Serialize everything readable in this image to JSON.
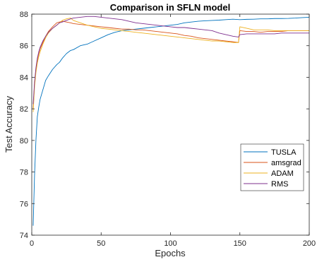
{
  "chart_data": {
    "type": "line",
    "title": "Comparison in SFLN model",
    "xlabel": "Epochs",
    "ylabel": "Test Accuracy",
    "xlim": [
      0,
      200
    ],
    "ylim": [
      74,
      88
    ],
    "xticks": [
      0,
      50,
      100,
      150,
      200
    ],
    "yticks": [
      74,
      76,
      78,
      80,
      82,
      84,
      86,
      88
    ],
    "grid": false,
    "legend_position": "right",
    "series": [
      {
        "name": "TUSLA",
        "color": "#0072BD",
        "x": [
          1,
          2,
          3,
          4,
          5,
          6,
          8,
          10,
          12,
          15,
          18,
          20,
          22,
          25,
          28,
          30,
          35,
          40,
          45,
          50,
          55,
          60,
          65,
          70,
          75,
          80,
          85,
          90,
          95,
          100,
          105,
          110,
          115,
          120,
          125,
          130,
          135,
          140,
          145,
          150,
          155,
          160,
          165,
          170,
          175,
          180,
          185,
          190,
          195,
          200
        ],
        "values": [
          74.6,
          77.8,
          80.0,
          81.5,
          82.1,
          82.6,
          83.2,
          83.8,
          84.1,
          84.5,
          84.8,
          84.95,
          85.2,
          85.5,
          85.7,
          85.75,
          86.0,
          86.1,
          86.3,
          86.5,
          86.7,
          86.85,
          86.95,
          87.0,
          87.05,
          87.1,
          87.15,
          87.2,
          87.25,
          87.3,
          87.35,
          87.45,
          87.5,
          87.55,
          87.58,
          87.6,
          87.62,
          87.65,
          87.68,
          87.65,
          87.67,
          87.68,
          87.7,
          87.7,
          87.72,
          87.72,
          87.73,
          87.75,
          87.78,
          87.8
        ]
      },
      {
        "name": "amsgrad",
        "color": "#D95319",
        "x": [
          1,
          2,
          3,
          4,
          5,
          6,
          8,
          10,
          12,
          15,
          18,
          20,
          22,
          25,
          28,
          30,
          35,
          40,
          45,
          50,
          55,
          60,
          65,
          70,
          75,
          80,
          85,
          90,
          95,
          100,
          105,
          110,
          115,
          120,
          125,
          130,
          135,
          140,
          145,
          149,
          150,
          155,
          160,
          165,
          170,
          175,
          180,
          185,
          190,
          195,
          200
        ],
        "values": [
          82.0,
          83.6,
          84.5,
          85.1,
          85.5,
          85.8,
          86.2,
          86.6,
          86.9,
          87.2,
          87.45,
          87.5,
          87.55,
          87.5,
          87.45,
          87.4,
          87.35,
          87.3,
          87.25,
          87.2,
          87.15,
          87.1,
          87.05,
          87.05,
          87.0,
          87.0,
          86.95,
          86.9,
          86.85,
          86.8,
          86.75,
          86.65,
          86.6,
          86.5,
          86.45,
          86.4,
          86.35,
          86.3,
          86.25,
          86.2,
          86.95,
          86.9,
          86.9,
          86.85,
          86.9,
          86.9,
          86.9,
          86.95,
          86.95,
          86.95,
          86.95
        ]
      },
      {
        "name": "ADAM",
        "color": "#EDB120",
        "x": [
          1,
          2,
          3,
          4,
          5,
          6,
          8,
          10,
          12,
          15,
          18,
          20,
          22,
          25,
          28,
          30,
          35,
          40,
          45,
          50,
          55,
          60,
          65,
          70,
          75,
          80,
          85,
          90,
          95,
          100,
          105,
          110,
          115,
          120,
          125,
          130,
          135,
          140,
          145,
          149,
          150,
          155,
          160,
          165,
          170,
          175,
          180,
          185,
          190,
          195,
          200
        ],
        "values": [
          81.8,
          83.4,
          84.3,
          84.9,
          85.3,
          85.6,
          86.1,
          86.5,
          86.8,
          87.1,
          87.3,
          87.45,
          87.6,
          87.7,
          87.75,
          87.6,
          87.45,
          87.3,
          87.2,
          87.1,
          87.05,
          87.0,
          86.95,
          86.9,
          86.85,
          86.8,
          86.75,
          86.7,
          86.65,
          86.6,
          86.55,
          86.5,
          86.45,
          86.4,
          86.35,
          86.3,
          86.3,
          86.25,
          86.2,
          86.2,
          87.2,
          87.1,
          87.0,
          87.0,
          87.0,
          86.95,
          86.95,
          86.95,
          86.95,
          86.95,
          86.95
        ]
      },
      {
        "name": "RMS",
        "color": "#7E2F8E",
        "x": [
          1,
          2,
          3,
          4,
          5,
          6,
          8,
          10,
          12,
          15,
          18,
          20,
          22,
          25,
          28,
          30,
          35,
          40,
          45,
          50,
          55,
          60,
          65,
          70,
          75,
          80,
          85,
          90,
          95,
          100,
          105,
          110,
          115,
          120,
          125,
          130,
          135,
          140,
          145,
          149,
          150,
          155,
          160,
          165,
          170,
          175,
          180,
          185,
          190,
          195,
          200
        ],
        "values": [
          82.3,
          83.7,
          84.6,
          85.2,
          85.6,
          85.9,
          86.3,
          86.6,
          86.85,
          87.1,
          87.3,
          87.45,
          87.5,
          87.6,
          87.7,
          87.75,
          87.8,
          87.85,
          87.85,
          87.8,
          87.75,
          87.7,
          87.65,
          87.55,
          87.45,
          87.4,
          87.35,
          87.3,
          87.25,
          87.2,
          87.15,
          87.15,
          87.1,
          87.05,
          87.0,
          86.95,
          86.8,
          86.7,
          86.6,
          86.55,
          86.7,
          86.75,
          86.75,
          86.75,
          86.75,
          86.75,
          86.8,
          86.8,
          86.8,
          86.8,
          86.8
        ]
      }
    ]
  }
}
